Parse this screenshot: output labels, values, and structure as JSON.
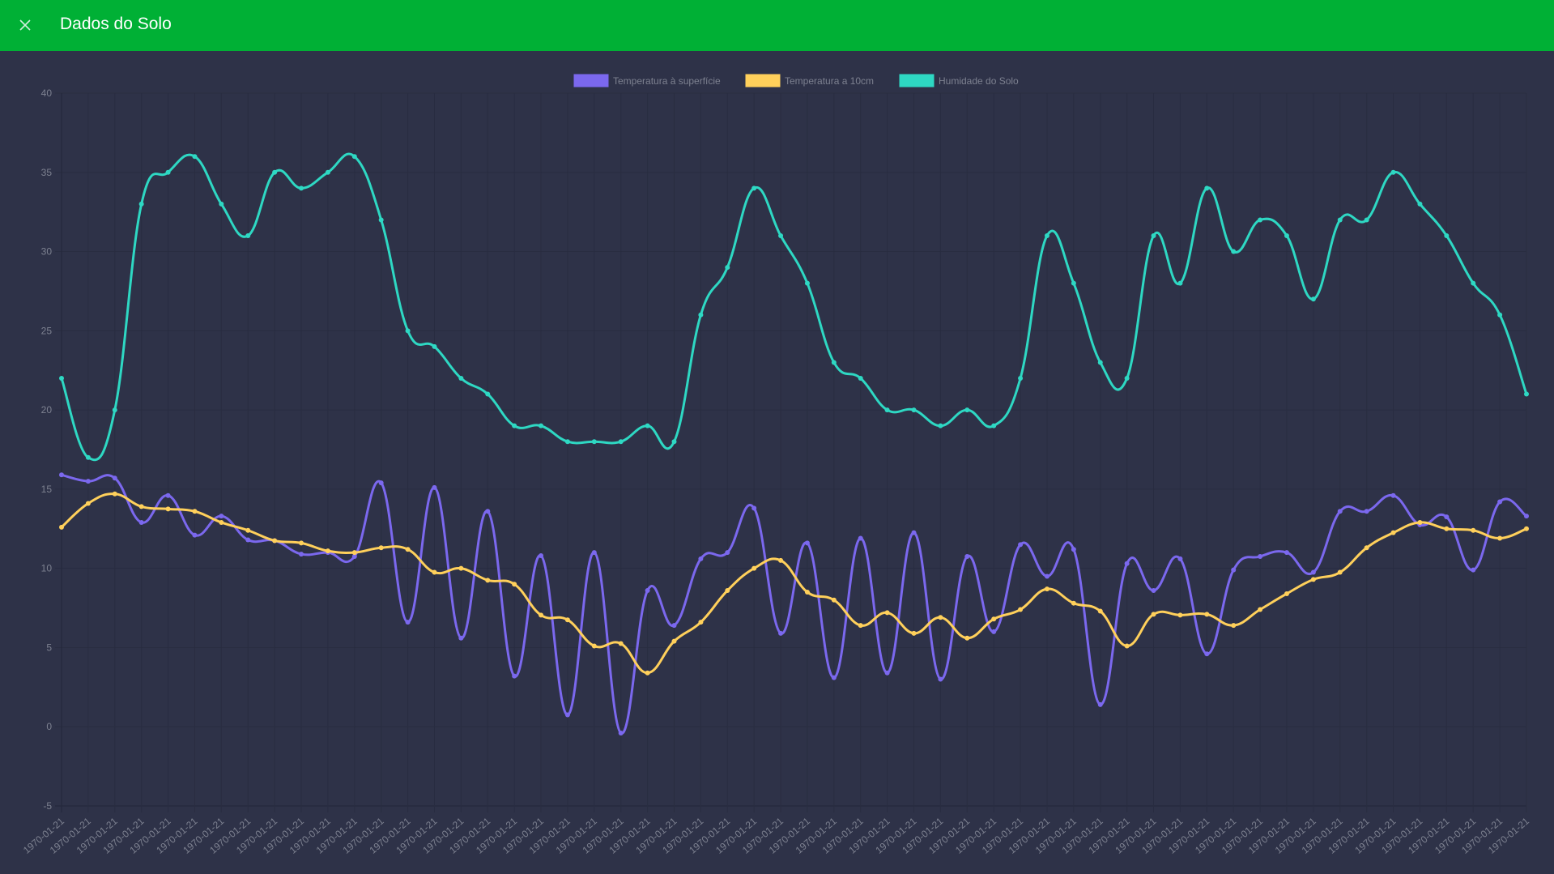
{
  "header": {
    "title": "Dados do Solo",
    "close_icon": "close-icon"
  },
  "colors": {
    "header": "#00b035",
    "background": "#2e3248",
    "surface": "#7b68ee",
    "depth10": "#ffd05b",
    "humidity": "#2ed8c3"
  },
  "chart_data": {
    "type": "line",
    "title": "",
    "xlabel": "",
    "ylabel": "",
    "ylim": [
      -5,
      40
    ],
    "yticks": [
      "-5",
      "0",
      "5",
      "10",
      "15",
      "20",
      "25",
      "30",
      "35",
      "40"
    ],
    "grid": true,
    "legend_position": "top",
    "x_label_text": "1970-01-21",
    "series": [
      {
        "name": "Temperatura à superfície",
        "color": "#7b68ee",
        "values": [
          15.9,
          15.5,
          15.7,
          12.9,
          14.6,
          12.1,
          13.3,
          11.8,
          11.75,
          10.9,
          11.0,
          10.75,
          15.4,
          6.6,
          15.1,
          5.6,
          13.6,
          3.2,
          10.8,
          0.75,
          11.0,
          -0.4,
          8.6,
          6.4,
          10.6,
          11.0,
          13.8,
          5.9,
          11.6,
          3.1,
          11.9,
          3.4,
          12.25,
          3.0,
          10.75,
          6.0,
          11.5,
          9.5,
          11.2,
          1.4,
          10.3,
          8.6,
          10.6,
          4.6,
          9.9,
          10.75,
          11.0,
          9.75,
          13.6,
          13.6,
          14.6,
          12.75,
          13.25,
          9.9,
          14.2,
          13.3
        ]
      },
      {
        "name": "Temperatura a 10cm",
        "color": "#ffd05b",
        "values": [
          12.6,
          14.1,
          14.7,
          13.9,
          13.75,
          13.6,
          12.9,
          12.4,
          11.75,
          11.6,
          11.1,
          11.0,
          11.3,
          11.2,
          9.75,
          10.0,
          9.25,
          9.0,
          7.05,
          6.75,
          5.1,
          5.25,
          3.4,
          5.4,
          6.6,
          8.6,
          10.0,
          10.5,
          8.5,
          8.0,
          6.4,
          7.2,
          5.9,
          6.9,
          5.6,
          6.8,
          7.4,
          8.7,
          7.8,
          7.3,
          5.1,
          7.1,
          7.05,
          7.1,
          6.4,
          7.4,
          8.4,
          9.3,
          9.75,
          11.3,
          12.25,
          12.9,
          12.5,
          12.4,
          11.9,
          12.5
        ]
      },
      {
        "name": "Humidade do Solo",
        "color": "#2ed8c3",
        "values": [
          22,
          17,
          20,
          33,
          35,
          36,
          33,
          31,
          35,
          34,
          35,
          36,
          32,
          25,
          24,
          22,
          21,
          19,
          19,
          18,
          18,
          18,
          19,
          18,
          26,
          29,
          34,
          31,
          28,
          23,
          22,
          20,
          20,
          19,
          20,
          19,
          22,
          31,
          28,
          23,
          22,
          31,
          28,
          34,
          30,
          32,
          31,
          27,
          32,
          32,
          35,
          33,
          31,
          28,
          26,
          21
        ]
      }
    ]
  }
}
